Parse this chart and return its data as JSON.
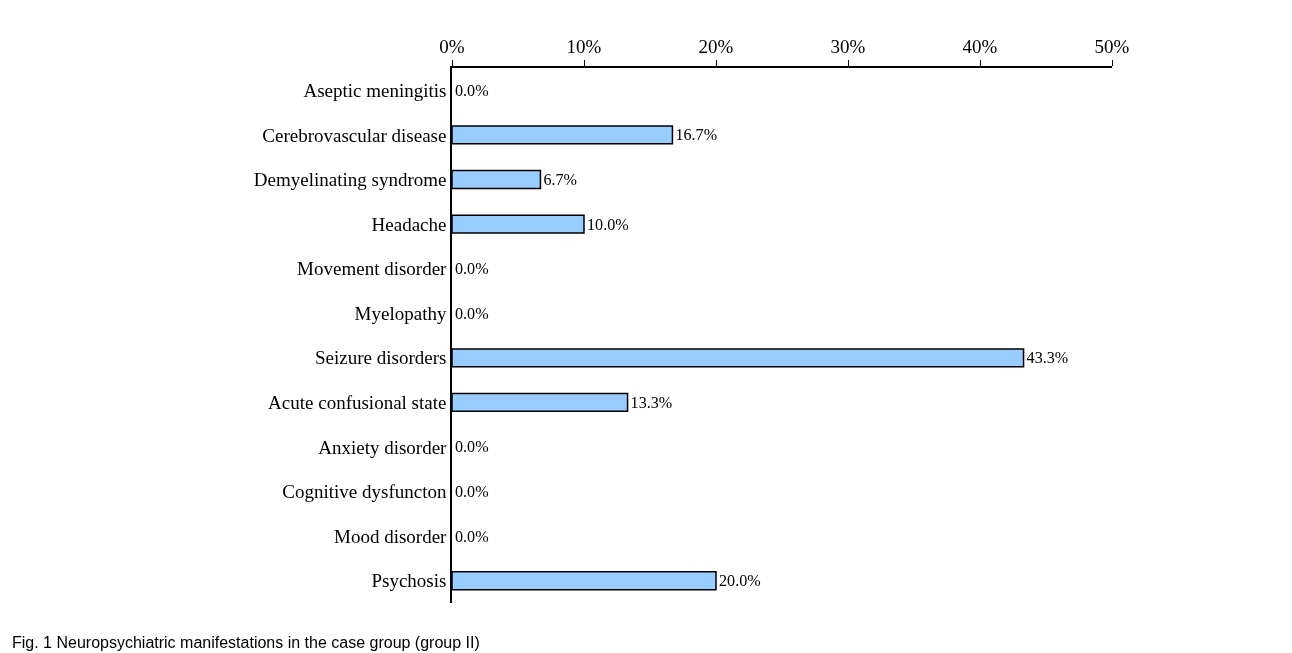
{
  "chart_data": {
    "type": "bar",
    "orientation": "horizontal",
    "categories": [
      "Aseptic meningitis",
      "Cerebrovascular disease",
      "Demyelinating syndrome",
      "Headache",
      "Movement disorder",
      "Myelopathy",
      "Seizure disorders",
      "Acute confusional state",
      "Anxiety disorder",
      "Cognitive dysfuncton",
      "Mood disorder",
      "Psychosis"
    ],
    "values": [
      0.0,
      16.7,
      6.7,
      10.0,
      0.0,
      0.0,
      43.3,
      13.3,
      0.0,
      0.0,
      0.0,
      20.0
    ],
    "value_labels": [
      "0.0%",
      "16.7%",
      "6.7%",
      "10.0%",
      "0.0%",
      "0.0%",
      "43.3%",
      "13.3%",
      "0.0%",
      "0.0%",
      "0.0%",
      "20.0%"
    ],
    "color": "#99ccff",
    "xlim": [
      0,
      50
    ],
    "xticks": [
      {
        "value": 0,
        "label": "0%"
      },
      {
        "value": 10,
        "label": "10%"
      },
      {
        "value": 20,
        "label": "20%"
      },
      {
        "value": 30,
        "label": "30%"
      },
      {
        "value": 40,
        "label": "40%"
      },
      {
        "value": 50,
        "label": "50%"
      }
    ],
    "legend": false,
    "annotations": [
      "Fig. 1 Neuropsychiatric manifestations in the case group (group II)"
    ]
  }
}
